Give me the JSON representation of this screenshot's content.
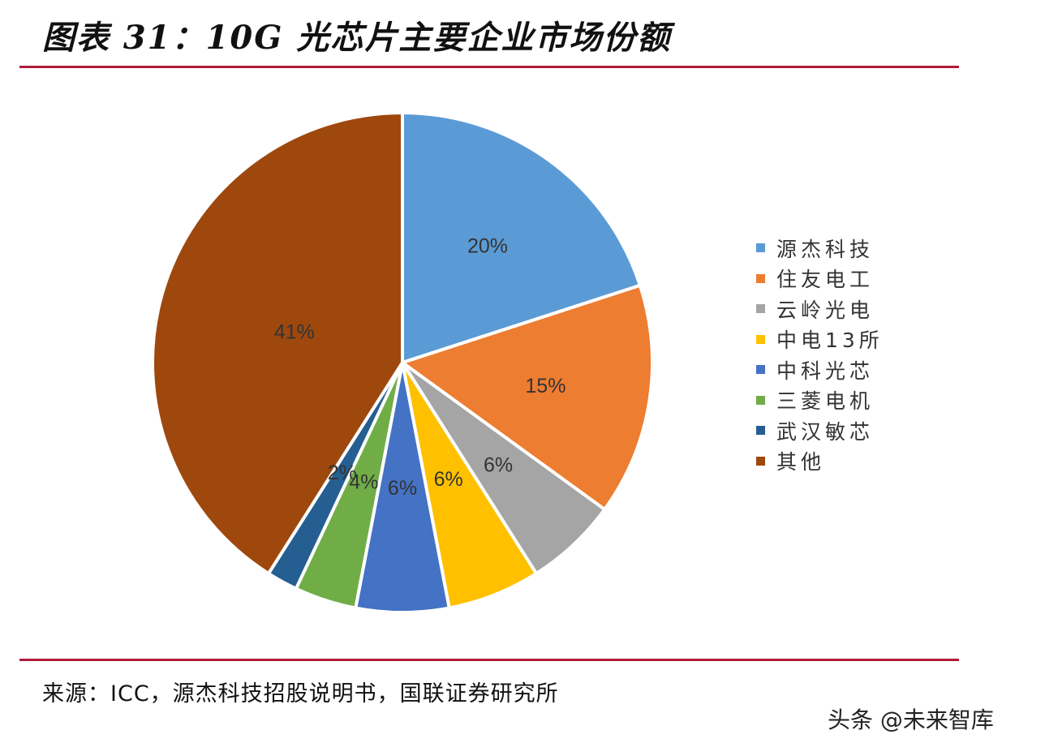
{
  "header": {
    "title": "图表 31：10G 光芯片主要企业市场份额"
  },
  "footer": {
    "source": "来源：ICC，源杰科技招股说明书，国联证券研究所",
    "watermark": "头条 @未来智库"
  },
  "colors": {
    "rule": "#b01c3a"
  },
  "chart_data": {
    "type": "pie",
    "title": "10G 光芯片主要企业市场份额",
    "start_angle": "12 o'clock, clockwise",
    "legend_position": "right",
    "categories": [
      "源杰科技",
      "住友电工",
      "云岭光电",
      "中电13所",
      "中科光芯",
      "三菱电机",
      "武汉敏芯",
      "其他"
    ],
    "values": [
      20,
      15,
      6,
      6,
      6,
      4,
      2,
      41
    ],
    "labels": [
      "20%",
      "15%",
      "6%",
      "6%",
      "6%",
      "4%",
      "2%",
      "41%"
    ],
    "colors": [
      "#5b9bd5",
      "#ed7d31",
      "#a5a5a5",
      "#ffc000",
      "#4472c4",
      "#70ad47",
      "#255e91",
      "#9e480e"
    ]
  },
  "legend": {
    "items": [
      {
        "label": "源杰科技",
        "color": "#5b9bd5"
      },
      {
        "label": "住友电工",
        "color": "#ed7d31"
      },
      {
        "label": "云岭光电",
        "color": "#a5a5a5"
      },
      {
        "label": "中电13所",
        "color": "#ffc000"
      },
      {
        "label": "中科光芯",
        "color": "#4472c4"
      },
      {
        "label": "三菱电机",
        "color": "#70ad47"
      },
      {
        "label": "武汉敏芯",
        "color": "#255e91"
      },
      {
        "label": "其他",
        "color": "#9e480e"
      }
    ]
  }
}
